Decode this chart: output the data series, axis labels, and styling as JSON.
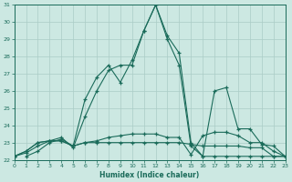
{
  "xlabel": "Humidex (Indice chaleur)",
  "background_color": "#cce8e2",
  "grid_color": "#aaccC6",
  "line_color": "#1a6b5a",
  "xlim": [
    0,
    23
  ],
  "ylim": [
    22,
    31
  ],
  "yticks": [
    22,
    23,
    24,
    25,
    26,
    27,
    28,
    29,
    30,
    31
  ],
  "xticks": [
    0,
    1,
    2,
    3,
    4,
    5,
    6,
    7,
    8,
    9,
    10,
    11,
    12,
    13,
    14,
    15,
    16,
    17,
    18,
    19,
    20,
    21,
    22,
    23
  ],
  "series": [
    {
      "x": [
        0,
        1,
        2,
        3,
        4,
        5,
        6,
        7,
        8,
        9,
        10,
        11,
        12,
        13,
        14,
        15,
        16,
        17,
        18,
        19,
        20,
        21,
        22,
        23
      ],
      "y": [
        22.2,
        22.5,
        23.0,
        23.1,
        23.1,
        22.8,
        23.0,
        23.0,
        23.0,
        23.0,
        23.0,
        23.0,
        23.0,
        23.0,
        23.0,
        22.9,
        22.8,
        22.8,
        22.8,
        22.8,
        22.7,
        22.7,
        22.2,
        22.2
      ]
    },
    {
      "x": [
        0,
        1,
        2,
        3,
        4,
        5,
        6,
        7,
        8,
        9,
        10,
        11,
        12,
        13,
        14,
        15,
        16,
        17,
        18,
        19,
        20,
        21,
        22,
        23
      ],
      "y": [
        22.2,
        22.5,
        23.0,
        23.1,
        23.1,
        22.8,
        23.0,
        23.1,
        23.3,
        23.4,
        23.5,
        23.5,
        23.5,
        23.3,
        23.3,
        22.3,
        23.4,
        23.6,
        23.6,
        23.4,
        23.0,
        23.0,
        22.5,
        22.2
      ]
    },
    {
      "x": [
        0,
        1,
        2,
        3,
        4,
        5,
        6,
        7,
        8,
        9,
        10,
        11,
        12,
        13,
        14,
        15,
        16,
        17,
        18,
        19,
        20,
        21,
        22,
        23
      ],
      "y": [
        22.2,
        22.4,
        22.8,
        23.1,
        23.3,
        22.7,
        24.5,
        26.0,
        27.2,
        27.5,
        27.5,
        29.5,
        31.0,
        29.0,
        27.5,
        22.8,
        22.2,
        22.2,
        22.2,
        22.2,
        22.2,
        22.2,
        22.2,
        22.2
      ]
    },
    {
      "x": [
        1,
        2,
        3,
        4,
        5,
        6,
        7,
        8,
        9,
        10,
        11,
        12,
        13,
        14,
        15,
        16,
        17,
        18,
        19,
        20,
        21,
        22,
        23
      ],
      "y": [
        22.2,
        22.5,
        23.0,
        23.2,
        22.8,
        25.5,
        26.8,
        27.5,
        26.5,
        27.8,
        29.5,
        31.0,
        29.2,
        28.2,
        23.0,
        22.2,
        26.0,
        26.2,
        23.8,
        23.8,
        22.9,
        22.8,
        22.2
      ]
    }
  ]
}
